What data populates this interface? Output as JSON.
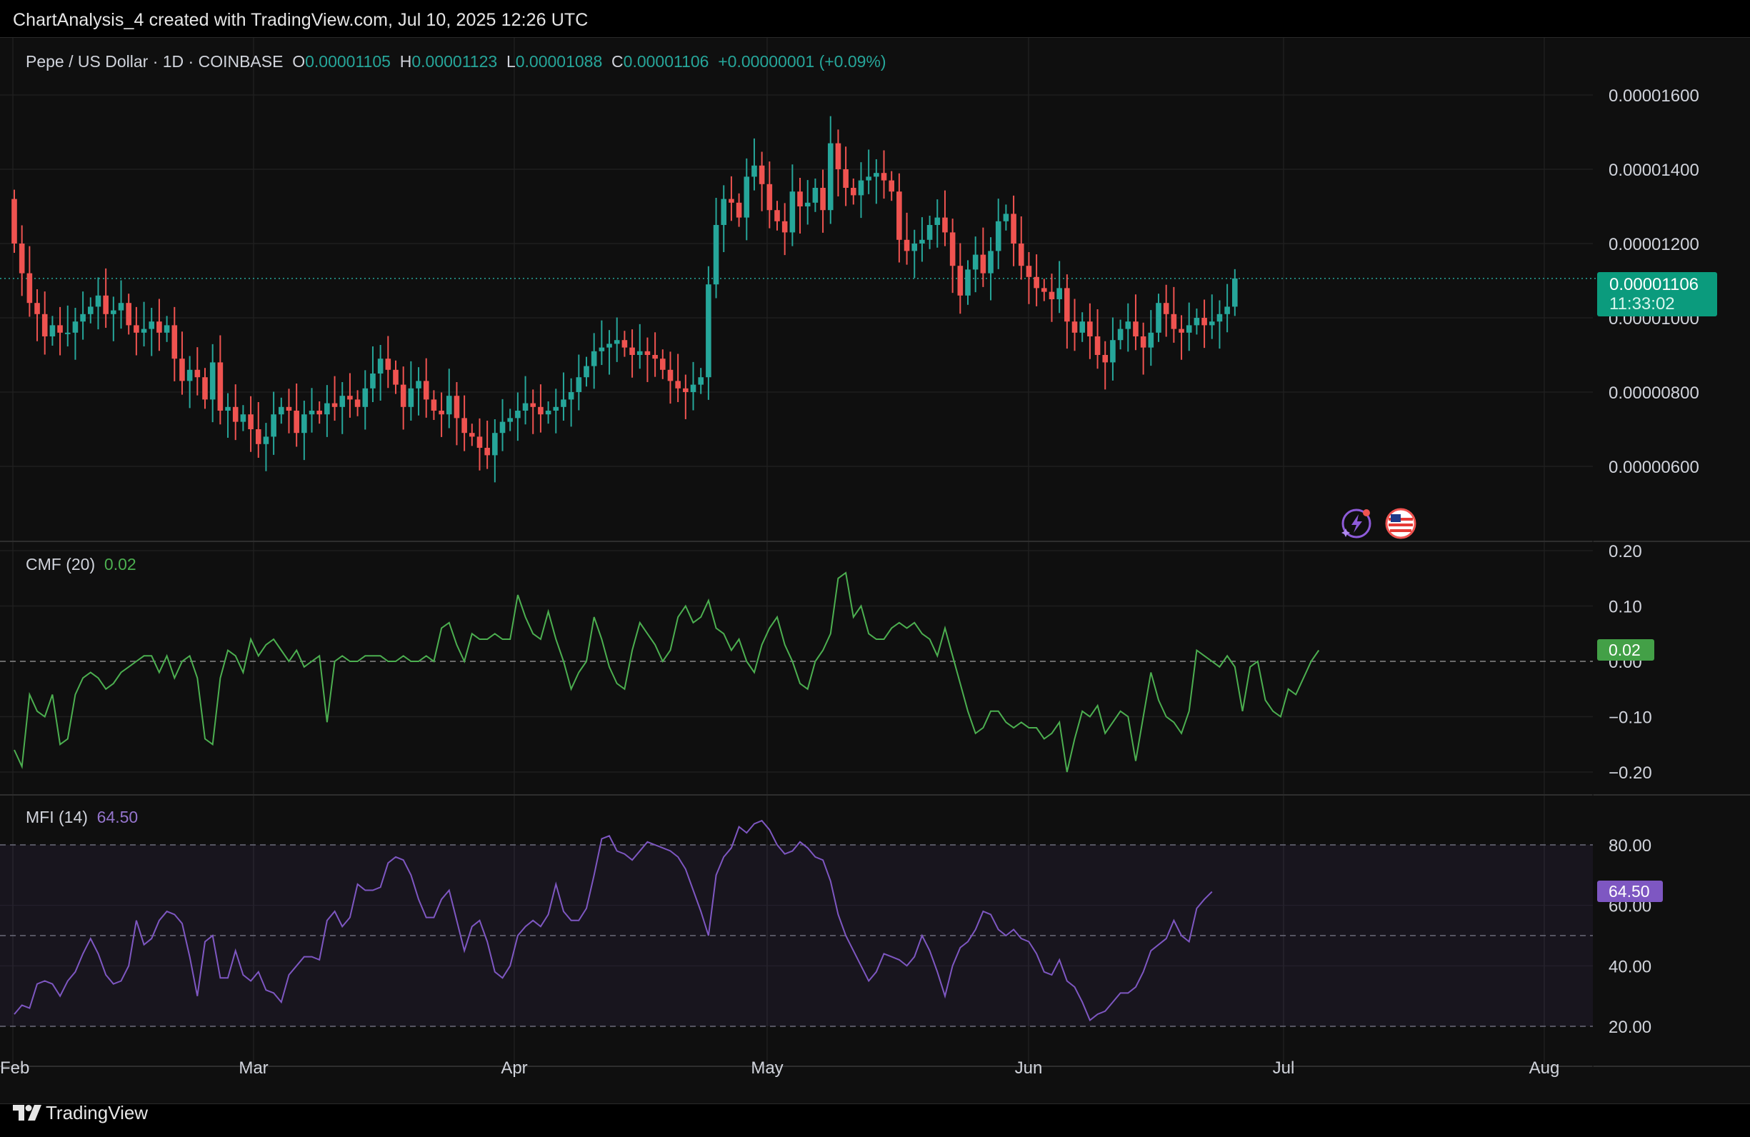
{
  "caption": "ChartAnalysis_4 created with TradingView.com, Jul 10, 2025 12:26 UTC",
  "footer": {
    "brand": "TradingView",
    "logo_icon": "tradingview-logo-icon"
  },
  "colors": {
    "up": "#26a69a",
    "down": "#ef5350",
    "cmf_line": "#4caf50",
    "mfi_line": "#7e57c2",
    "price_tag": "#0b9b7d",
    "cmf_tag": "#43a047",
    "mfi_tag": "#7e57c2"
  },
  "legend": {
    "symbol": "Pepe / US Dollar · 1D · COINBASE",
    "o_label": "O",
    "o_value": "0.00001105",
    "h_label": "H",
    "h_value": "0.00001123",
    "l_label": "L",
    "l_value": "0.00001088",
    "c_label": "C",
    "c_value": "0.00001106",
    "change": "+0.00000001 (+0.09%)"
  },
  "price_tag": {
    "value": "0.00001106",
    "countdown": "11:33:02"
  },
  "cmf": {
    "label": "CMF (20)",
    "value": "0.02"
  },
  "mfi": {
    "label": "MFI (14)",
    "value": "64.50"
  },
  "icons": [
    "ai-assistant-icon",
    "us-flag-icon"
  ],
  "chart_data": [
    {
      "type": "candlestick",
      "title": "Pepe / US Dollar · 1D · COINBASE",
      "x_tick_labels": [
        "Feb",
        "Mar",
        "Apr",
        "May",
        "Jun",
        "Jul",
        "Aug"
      ],
      "y_tick_labels": [
        "0.00001600",
        "0.00001400",
        "0.00001200",
        "0.00001000",
        "0.00000800",
        "0.00000600"
      ],
      "ylim": [
        4.5e-06,
        1.72e-05
      ],
      "last_price_line": 1.106e-05,
      "daily_closes": [
        12.0,
        11.2,
        10.4,
        10.1,
        9.5,
        9.8,
        9.6,
        9.6,
        9.9,
        10.1,
        10.3,
        10.6,
        10.1,
        10.2,
        10.4,
        9.8,
        9.6,
        9.7,
        9.9,
        9.6,
        9.8,
        8.9,
        8.3,
        8.6,
        8.4,
        7.8,
        8.8,
        7.5,
        7.6,
        7.2,
        7.4,
        7.0,
        6.6,
        6.8,
        7.4,
        7.6,
        7.5,
        6.9,
        7.4,
        7.5,
        7.4,
        7.7,
        7.6,
        7.9,
        7.8,
        7.6,
        8.1,
        8.5,
        8.9,
        8.6,
        8.2,
        7.6,
        8.1,
        8.3,
        7.8,
        7.5,
        7.4,
        7.9,
        7.3,
        6.9,
        6.8,
        6.5,
        6.3,
        6.9,
        7.2,
        7.3,
        7.5,
        7.7,
        7.6,
        7.4,
        7.5,
        7.6,
        7.8,
        8.0,
        8.4,
        8.7,
        9.1,
        9.2,
        9.3,
        9.4,
        9.2,
        9.0,
        9.1,
        9.0,
        8.9,
        8.6,
        8.3,
        8.1,
        8.0,
        8.2,
        8.4,
        10.9,
        12.5,
        13.2,
        13.1,
        12.7,
        13.8,
        14.1,
        13.6,
        12.9,
        12.6,
        12.3,
        13.4,
        13.0,
        13.1,
        13.5,
        12.9,
        14.7,
        14.0,
        13.5,
        13.3,
        13.7,
        13.8,
        13.9,
        13.7,
        13.4,
        12.1,
        11.8,
        12.0,
        12.1,
        12.5,
        12.7,
        12.3,
        11.4,
        10.6,
        11.3,
        11.7,
        11.2,
        11.8,
        12.6,
        12.8,
        12.0,
        11.4,
        11.1,
        10.8,
        10.7,
        10.5,
        10.8,
        9.9,
        9.6,
        9.9,
        9.5,
        9.0,
        8.8,
        9.4,
        9.7,
        9.9,
        9.5,
        9.2,
        9.6,
        10.4,
        10.1,
        9.7,
        9.6,
        9.8,
        10.0,
        9.8,
        9.9,
        10.1,
        10.3,
        11.06
      ]
    },
    {
      "type": "line",
      "title": "CMF (20)",
      "y_tick_labels": [
        "0.20",
        "0.10",
        "0.00",
        "−0.10",
        "−0.20"
      ],
      "ylim": [
        -0.21,
        0.21
      ],
      "values": [
        -0.16,
        -0.19,
        -0.06,
        -0.09,
        -0.1,
        -0.06,
        -0.15,
        -0.14,
        -0.06,
        -0.03,
        -0.02,
        -0.03,
        -0.05,
        -0.04,
        -0.02,
        -0.01,
        0.0,
        0.01,
        0.01,
        -0.02,
        0.01,
        -0.03,
        0.0,
        0.01,
        -0.03,
        -0.14,
        -0.15,
        -0.03,
        0.02,
        0.01,
        -0.02,
        0.04,
        0.01,
        0.03,
        0.04,
        0.02,
        0.0,
        0.02,
        -0.01,
        0.0,
        0.01,
        -0.11,
        0.0,
        0.01,
        0.0,
        0.0,
        0.01,
        0.01,
        0.01,
        0.0,
        0.0,
        0.01,
        0.0,
        0.0,
        0.01,
        0.0,
        0.06,
        0.07,
        0.03,
        0.0,
        0.05,
        0.04,
        0.04,
        0.05,
        0.04,
        0.04,
        0.12,
        0.08,
        0.05,
        0.04,
        0.09,
        0.04,
        0.0,
        -0.05,
        -0.02,
        0.0,
        0.08,
        0.04,
        -0.01,
        -0.04,
        -0.05,
        0.02,
        0.07,
        0.05,
        0.03,
        0.0,
        0.02,
        0.08,
        0.1,
        0.07,
        0.08,
        0.11,
        0.06,
        0.05,
        0.02,
        0.04,
        0.0,
        -0.02,
        0.03,
        0.06,
        0.08,
        0.03,
        0.0,
        -0.04,
        -0.05,
        0.0,
        0.02,
        0.05,
        0.15,
        0.16,
        0.08,
        0.1,
        0.05,
        0.04,
        0.04,
        0.06,
        0.07,
        0.06,
        0.07,
        0.05,
        0.04,
        0.01,
        0.06,
        0.01,
        -0.04,
        -0.09,
        -0.13,
        -0.12,
        -0.09,
        -0.09,
        -0.11,
        -0.12,
        -0.11,
        -0.12,
        -0.12,
        -0.14,
        -0.13,
        -0.11,
        -0.2,
        -0.14,
        -0.09,
        -0.1,
        -0.08,
        -0.13,
        -0.11,
        -0.09,
        -0.1,
        -0.18,
        -0.1,
        -0.02,
        -0.07,
        -0.1,
        -0.11,
        -0.13,
        -0.09,
        0.02,
        0.01,
        0.0,
        -0.01,
        0.01,
        -0.01,
        -0.09,
        -0.01,
        0.0,
        -0.07,
        -0.09,
        -0.1,
        -0.05,
        -0.06,
        -0.03,
        0.0,
        0.02
      ]
    },
    {
      "type": "line",
      "title": "MFI (14)",
      "y_tick_labels": [
        "80.00",
        "60.00",
        "40.00",
        "20.00"
      ],
      "ylim": [
        17,
        90
      ],
      "band": [
        20,
        80
      ],
      "middle_line": 50,
      "values": [
        24,
        27,
        26,
        34,
        35,
        34,
        30,
        35,
        38,
        44,
        49,
        44,
        37,
        34,
        35,
        40,
        55,
        47,
        49,
        55,
        58,
        57,
        54,
        43,
        30,
        48,
        50,
        36,
        36,
        45,
        37,
        35,
        38,
        32,
        31,
        28,
        37,
        40,
        43,
        43,
        42,
        55,
        58,
        53,
        56,
        67,
        65,
        65,
        66,
        74,
        76,
        75,
        70,
        62,
        56,
        56,
        62,
        65,
        55,
        45,
        53,
        55,
        48,
        38,
        36,
        40,
        50,
        53,
        55,
        53,
        57,
        67,
        58,
        55,
        55,
        59,
        70,
        82,
        83,
        78,
        77,
        75,
        78,
        81,
        80,
        79,
        78,
        76,
        72,
        65,
        58,
        50,
        70,
        76,
        79,
        86,
        84,
        87,
        88,
        85,
        80,
        77,
        78,
        81,
        79,
        76,
        75,
        68,
        57,
        50,
        45,
        40,
        35,
        38,
        44,
        43,
        42,
        40,
        43,
        50,
        45,
        38,
        30,
        40,
        46,
        48,
        52,
        58,
        57,
        52,
        50,
        52,
        49,
        48,
        44,
        38,
        37,
        42,
        35,
        33,
        28,
        22,
        24,
        25,
        28,
        31,
        31,
        33,
        38,
        45,
        47,
        49,
        55,
        50,
        48,
        59,
        62,
        64.5
      ]
    }
  ]
}
